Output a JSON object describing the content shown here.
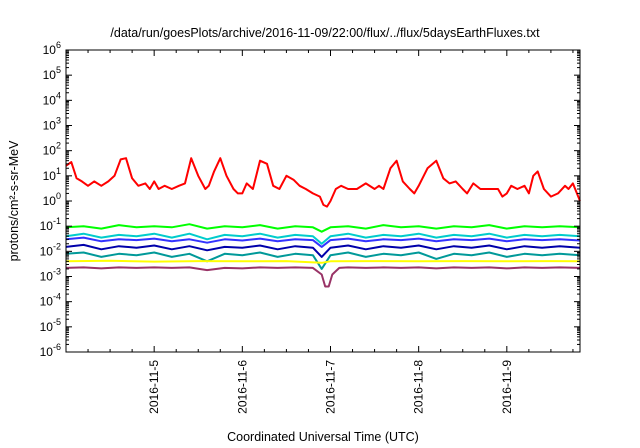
{
  "chart_data": {
    "type": "line",
    "title": "/data/run/goesPlots/archive/2016-11-09/22:00/flux/../flux/5daysEarthFluxes.txt",
    "xlabel": "Coordinated Universal Time (UTC)",
    "ylabel": "protons/cm²-s-sr-MeV",
    "yscale": "log",
    "ylim": [
      1e-06,
      1000000.0
    ],
    "y_ticks": [
      {
        "exp": "-6"
      },
      {
        "exp": "-5"
      },
      {
        "exp": "-4"
      },
      {
        "exp": "-3"
      },
      {
        "exp": "-2"
      },
      {
        "exp": "-1"
      },
      {
        "exp": "0"
      },
      {
        "exp": "1"
      },
      {
        "exp": "2"
      },
      {
        "exp": "3"
      },
      {
        "exp": "4"
      },
      {
        "exp": "5"
      },
      {
        "exp": "6"
      }
    ],
    "y_tick_base": "10",
    "xlim": [
      "2016-11-04 02:00",
      "2016-11-09 22:00"
    ],
    "x_ticks": [
      "2016-11-5",
      "2016-11-6",
      "2016-11-7",
      "2016-11-8",
      "2016-11-9"
    ],
    "x_tick_days": [
      1,
      2,
      3,
      4,
      5
    ],
    "grid": false,
    "legend": "none",
    "series": [
      {
        "color": "#ff0000",
        "x_days": [
          0.0,
          0.06,
          0.12,
          0.18,
          0.25,
          0.32,
          0.4,
          0.48,
          0.55,
          0.62,
          0.68,
          0.75,
          0.82,
          0.9,
          0.95,
          1.0,
          1.05,
          1.12,
          1.2,
          1.28,
          1.35,
          1.42,
          1.5,
          1.58,
          1.62,
          1.68,
          1.75,
          1.82,
          1.9,
          1.95,
          2.0,
          2.05,
          2.12,
          2.2,
          2.28,
          2.35,
          2.42,
          2.5,
          2.58,
          2.65,
          2.72,
          2.8,
          2.88,
          2.92,
          2.96,
          3.0,
          3.06,
          3.12,
          3.2,
          3.3,
          3.4,
          3.5,
          3.55,
          3.6,
          3.68,
          3.75,
          3.82,
          3.9,
          3.95,
          4.0,
          4.1,
          4.2,
          4.28,
          4.35,
          4.42,
          4.5,
          4.55,
          4.62,
          4.7,
          4.8,
          4.9,
          4.95,
          5.0,
          5.05,
          5.12,
          5.2,
          5.25,
          5.3,
          5.35,
          5.42,
          5.5,
          5.58,
          5.66,
          5.7,
          5.75,
          5.83
        ],
        "values": [
          25,
          35,
          8,
          6,
          4,
          6,
          4,
          6,
          10,
          45,
          50,
          8,
          4,
          5,
          3,
          6,
          3,
          4,
          3,
          4,
          5,
          50,
          10,
          3,
          4,
          15,
          50,
          10,
          3,
          2,
          2,
          5,
          3,
          40,
          30,
          4,
          3,
          10,
          7,
          4,
          3,
          2,
          1.5,
          0.7,
          0.6,
          1,
          3,
          4,
          3,
          3,
          5,
          3,
          4,
          3,
          20,
          40,
          6,
          3,
          2,
          4,
          20,
          40,
          8,
          5,
          6,
          3,
          2,
          5,
          3,
          3,
          3,
          1.5,
          2,
          4,
          3,
          4,
          2,
          10,
          15,
          3,
          1.5,
          2,
          4,
          3,
          5,
          1
        ]
      },
      {
        "color": "#00ff00",
        "x_days": [
          0.0,
          0.2,
          0.4,
          0.6,
          0.8,
          1.0,
          1.2,
          1.4,
          1.6,
          1.8,
          2.0,
          2.2,
          2.4,
          2.6,
          2.8,
          2.9,
          3.0,
          3.2,
          3.4,
          3.6,
          3.8,
          4.0,
          4.2,
          4.4,
          4.6,
          4.8,
          5.0,
          5.2,
          5.4,
          5.6,
          5.83
        ],
        "values": [
          0.09,
          0.1,
          0.08,
          0.11,
          0.09,
          0.1,
          0.09,
          0.12,
          0.08,
          0.1,
          0.09,
          0.11,
          0.08,
          0.1,
          0.09,
          0.06,
          0.09,
          0.1,
          0.08,
          0.11,
          0.09,
          0.1,
          0.08,
          0.1,
          0.09,
          0.11,
          0.08,
          0.1,
          0.09,
          0.1,
          0.09
        ]
      },
      {
        "color": "#00cccc",
        "x_days": [
          0.0,
          0.2,
          0.4,
          0.6,
          0.8,
          1.0,
          1.2,
          1.4,
          1.6,
          1.8,
          2.0,
          2.2,
          2.4,
          2.6,
          2.8,
          2.9,
          3.0,
          3.2,
          3.4,
          3.6,
          3.8,
          4.0,
          4.2,
          4.4,
          4.6,
          4.8,
          5.0,
          5.2,
          5.4,
          5.6,
          5.83
        ],
        "values": [
          0.04,
          0.05,
          0.035,
          0.045,
          0.04,
          0.05,
          0.035,
          0.05,
          0.03,
          0.045,
          0.04,
          0.05,
          0.035,
          0.045,
          0.04,
          0.02,
          0.04,
          0.05,
          0.035,
          0.045,
          0.04,
          0.05,
          0.035,
          0.045,
          0.04,
          0.05,
          0.035,
          0.045,
          0.04,
          0.045,
          0.04
        ]
      },
      {
        "color": "#3333ff",
        "x_days": [
          0.0,
          0.2,
          0.4,
          0.6,
          0.8,
          1.0,
          1.2,
          1.4,
          1.6,
          1.8,
          2.0,
          2.2,
          2.4,
          2.6,
          2.8,
          2.9,
          3.0,
          3.2,
          3.4,
          3.6,
          3.8,
          4.0,
          4.2,
          4.4,
          4.6,
          4.8,
          5.0,
          5.2,
          5.4,
          5.6,
          5.83
        ],
        "values": [
          0.03,
          0.035,
          0.025,
          0.03,
          0.028,
          0.032,
          0.025,
          0.03,
          0.022,
          0.03,
          0.027,
          0.032,
          0.025,
          0.03,
          0.028,
          0.015,
          0.028,
          0.032,
          0.025,
          0.03,
          0.028,
          0.032,
          0.025,
          0.03,
          0.028,
          0.032,
          0.025,
          0.03,
          0.028,
          0.03,
          0.027
        ]
      },
      {
        "color": "#0000aa",
        "x_days": [
          0.0,
          0.2,
          0.4,
          0.6,
          0.8,
          1.0,
          1.2,
          1.4,
          1.6,
          1.8,
          2.0,
          2.2,
          2.4,
          2.6,
          2.8,
          2.9,
          3.0,
          3.2,
          3.4,
          3.6,
          3.8,
          4.0,
          4.2,
          4.4,
          4.6,
          4.8,
          5.0,
          5.2,
          5.4,
          5.6,
          5.83
        ],
        "values": [
          0.015,
          0.018,
          0.012,
          0.016,
          0.014,
          0.017,
          0.012,
          0.016,
          0.011,
          0.015,
          0.014,
          0.017,
          0.012,
          0.016,
          0.014,
          0.006,
          0.014,
          0.017,
          0.012,
          0.016,
          0.014,
          0.017,
          0.012,
          0.016,
          0.014,
          0.017,
          0.012,
          0.016,
          0.014,
          0.016,
          0.014
        ]
      },
      {
        "color": "#009999",
        "x_days": [
          0.0,
          0.2,
          0.4,
          0.6,
          0.8,
          1.0,
          1.2,
          1.4,
          1.6,
          1.8,
          2.0,
          2.2,
          2.4,
          2.6,
          2.8,
          2.9,
          3.0,
          3.2,
          3.4,
          3.6,
          3.8,
          4.0,
          4.2,
          4.4,
          4.6,
          4.8,
          5.0,
          5.2,
          5.4,
          5.6,
          5.83
        ],
        "values": [
          0.008,
          0.009,
          0.006,
          0.008,
          0.007,
          0.009,
          0.006,
          0.008,
          0.004,
          0.008,
          0.007,
          0.009,
          0.006,
          0.008,
          0.007,
          0.002,
          0.007,
          0.009,
          0.006,
          0.008,
          0.007,
          0.009,
          0.005,
          0.008,
          0.007,
          0.009,
          0.006,
          0.008,
          0.007,
          0.008,
          0.007
        ]
      },
      {
        "color": "#ffff00",
        "x_days": [
          0.0,
          0.5,
          1.0,
          1.5,
          2.0,
          2.5,
          2.9,
          3.0,
          3.5,
          4.0,
          4.5,
          5.0,
          5.5,
          5.83
        ],
        "values": [
          0.004,
          0.0042,
          0.0039,
          0.0041,
          0.004,
          0.0041,
          0.0035,
          0.004,
          0.0041,
          0.004,
          0.0041,
          0.004,
          0.0041,
          0.004
        ]
      },
      {
        "color": "#993366",
        "x_days": [
          0.0,
          0.2,
          0.4,
          0.6,
          0.8,
          1.0,
          1.2,
          1.4,
          1.6,
          1.8,
          2.0,
          2.2,
          2.4,
          2.6,
          2.8,
          2.9,
          2.94,
          2.98,
          3.02,
          3.1,
          3.2,
          3.4,
          3.6,
          3.8,
          4.0,
          4.2,
          4.4,
          4.6,
          4.8,
          5.0,
          5.2,
          5.4,
          5.6,
          5.83
        ],
        "values": [
          0.0022,
          0.0023,
          0.0021,
          0.0023,
          0.0022,
          0.0023,
          0.0022,
          0.0023,
          0.0018,
          0.0022,
          0.0021,
          0.0023,
          0.0022,
          0.0023,
          0.0022,
          0.0012,
          0.0004,
          0.0004,
          0.0012,
          0.0022,
          0.0023,
          0.0022,
          0.0023,
          0.0022,
          0.0023,
          0.0021,
          0.0023,
          0.0022,
          0.0023,
          0.0021,
          0.0023,
          0.0022,
          0.0023,
          0.0022
        ]
      }
    ]
  }
}
